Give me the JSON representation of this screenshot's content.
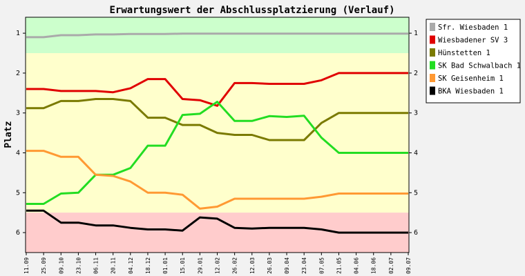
{
  "chart_data": {
    "type": "line",
    "title": "Erwartungswert der Abschlussplatzierung (Verlauf)",
    "ylabel": "Platz",
    "xlabel": "",
    "ylim": [
      0.6,
      6.5
    ],
    "y_inverted": true,
    "yticks": [
      1,
      2,
      3,
      4,
      5,
      6
    ],
    "grid": false,
    "legend_position": "right",
    "x": [
      "11.09",
      "25.09",
      "09.10",
      "23.10",
      "06.11",
      "20.11",
      "04.12",
      "18.12",
      "01.01",
      "15.01",
      "29.01",
      "12.02",
      "26.02",
      "12.03",
      "26.03",
      "09.04",
      "23.04",
      "07.05",
      "21.05",
      "04.06",
      "18.06",
      "02.07",
      "09.07"
    ],
    "bands": [
      {
        "from": 0.6,
        "to": 1.5,
        "color": "#ccffcc"
      },
      {
        "from": 1.5,
        "to": 5.5,
        "color": "#ffffcc"
      },
      {
        "from": 5.5,
        "to": 6.5,
        "color": "#ffcccc"
      }
    ],
    "bands_color_note": "",
    "series": [
      {
        "name": "Sfr. Wiesbaden 1",
        "color": "#aaaaaa",
        "values": [
          1.1,
          1.1,
          1.05,
          1.05,
          1.03,
          1.03,
          1.02,
          1.02,
          1.02,
          1.01,
          1.01,
          1.01,
          1.01,
          1.01,
          1.01,
          1.01,
          1.01,
          1.01,
          1.01,
          1.01,
          1.01,
          1.01,
          1.01
        ]
      },
      {
        "name": "Wiesbadener SV 3",
        "color": "#e00000",
        "values": [
          2.4,
          2.4,
          2.45,
          2.45,
          2.45,
          2.48,
          2.38,
          2.15,
          2.15,
          2.65,
          2.68,
          2.82,
          2.25,
          2.25,
          2.27,
          2.27,
          2.27,
          2.18,
          2.0,
          2.0,
          2.0,
          2.0,
          2.0
        ]
      },
      {
        "name": "Hünstetten 1",
        "color": "#7a7a00",
        "values": [
          2.88,
          2.88,
          2.7,
          2.7,
          2.65,
          2.65,
          2.7,
          3.12,
          3.12,
          3.3,
          3.3,
          3.5,
          3.55,
          3.55,
          3.68,
          3.68,
          3.68,
          3.25,
          3.0,
          3.0,
          3.0,
          3.0,
          3.0
        ]
      },
      {
        "name": "SK Bad Schwalbach 1",
        "color": "#22dd22",
        "values": [
          5.28,
          5.28,
          5.02,
          5.0,
          4.55,
          4.55,
          4.38,
          3.82,
          3.82,
          3.05,
          3.02,
          2.72,
          3.2,
          3.2,
          3.08,
          3.1,
          3.07,
          3.62,
          4.0,
          4.0,
          4.0,
          4.0,
          4.0
        ]
      },
      {
        "name": "SK Geisenheim 1",
        "color": "#ff9933",
        "values": [
          3.95,
          3.95,
          4.1,
          4.1,
          4.55,
          4.58,
          4.72,
          5.0,
          5.0,
          5.05,
          5.4,
          5.35,
          5.15,
          5.15,
          5.15,
          5.15,
          5.15,
          5.1,
          5.02,
          5.02,
          5.02,
          5.02,
          5.02
        ]
      },
      {
        "name": "BKA Wiesbaden 1",
        "color": "#000000",
        "values": [
          5.45,
          5.45,
          5.75,
          5.75,
          5.82,
          5.82,
          5.88,
          5.92,
          5.92,
          5.95,
          5.62,
          5.65,
          5.88,
          5.9,
          5.88,
          5.88,
          5.88,
          5.92,
          6.0,
          6.0,
          6.0,
          6.0,
          6.0
        ]
      }
    ]
  }
}
